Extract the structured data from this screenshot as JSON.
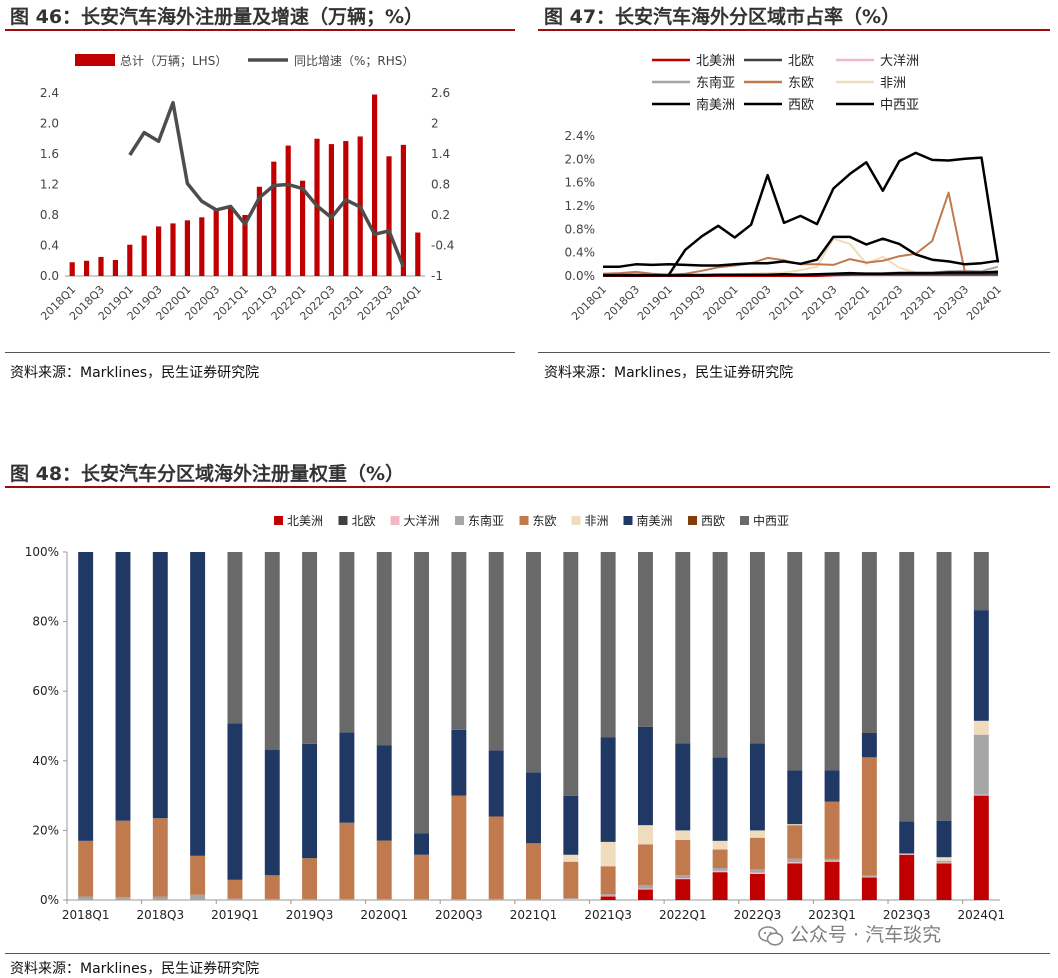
{
  "fig46": {
    "title": "图 46：长安汽车海外注册量及增速（万辆；%）",
    "source": "资料来源：Marklines，民生证券研究院",
    "legend_bar": "总计（万辆；LHS）",
    "legend_line": "同比增速（%；RHS）"
  },
  "fig47": {
    "title": "图 47：长安汽车海外分区域市占率（%）",
    "source": "资料来源：Marklines，民生证券研究院"
  },
  "fig48": {
    "title": "图 48：长安汽车分区域海外注册量权重（%）",
    "source": "资料来源：Marklines，民生证券研究院"
  },
  "watermark": "公众号 · 汽车琰究",
  "chart_data": [
    {
      "id": "fig46",
      "type": "bar",
      "x": [
        "2018Q1",
        "2018Q2",
        "2018Q3",
        "2018Q4",
        "2019Q1",
        "2019Q2",
        "2019Q3",
        "2019Q4",
        "2020Q1",
        "2020Q2",
        "2020Q3",
        "2020Q4",
        "2021Q1",
        "2021Q2",
        "2021Q3",
        "2021Q4",
        "2022Q1",
        "2022Q2",
        "2022Q3",
        "2022Q4",
        "2023Q1",
        "2023Q2",
        "2023Q3",
        "2023Q4",
        "2024Q1"
      ],
      "xticks": [
        "2018Q1",
        "2018Q3",
        "2019Q1",
        "2019Q3",
        "2020Q1",
        "2020Q3",
        "2021Q1",
        "2021Q3",
        "2022Q1",
        "2022Q3",
        "2023Q1",
        "2023Q3",
        "2024Q1"
      ],
      "series": [
        {
          "name": "总计（万辆；LHS）",
          "type": "bar",
          "axis": "left",
          "color": "#c00000",
          "values": [
            0.18,
            0.2,
            0.25,
            0.21,
            0.41,
            0.53,
            0.65,
            0.69,
            0.73,
            0.77,
            0.87,
            0.89,
            0.8,
            1.17,
            1.5,
            1.71,
            1.25,
            1.8,
            1.73,
            1.77,
            1.83,
            2.38,
            1.57,
            1.72,
            0.57
          ]
        },
        {
          "name": "同比增速（%；RHS）",
          "type": "line",
          "axis": "right",
          "color": "#4d4d4d",
          "values": [
            null,
            null,
            null,
            null,
            1.38,
            1.82,
            1.65,
            2.41,
            0.82,
            0.47,
            0.3,
            0.37,
            0.02,
            0.54,
            0.78,
            0.8,
            0.72,
            0.38,
            0.15,
            0.5,
            0.36,
            -0.18,
            -0.11,
            -0.82,
            null
          ]
        }
      ],
      "ylim_left": [
        0,
        2.4
      ],
      "yticks_left": [
        "0.0",
        "0.4",
        "0.8",
        "1.2",
        "1.6",
        "2.0",
        "2.4"
      ],
      "ylim_right": [
        -1,
        2.6
      ],
      "yticks_right": [
        "-1",
        "-0.4",
        "0.2",
        "0.8",
        "1.4",
        "2",
        "2.6"
      ]
    },
    {
      "id": "fig47",
      "type": "line",
      "x": [
        "2018Q1",
        "2018Q2",
        "2018Q3",
        "2018Q4",
        "2019Q1",
        "2019Q2",
        "2019Q3",
        "2019Q4",
        "2020Q1",
        "2020Q2",
        "2020Q3",
        "2020Q4",
        "2021Q1",
        "2021Q2",
        "2021Q3",
        "2021Q4",
        "2022Q1",
        "2022Q2",
        "2022Q3",
        "2022Q4",
        "2023Q1",
        "2023Q2",
        "2023Q3",
        "2023Q4",
        "2024Q1"
      ],
      "xticks": [
        "2018Q1",
        "2018Q3",
        "2019Q1",
        "2019Q3",
        "2020Q1",
        "2020Q3",
        "2021Q1",
        "2021Q3",
        "2022Q1",
        "2022Q3",
        "2023Q1",
        "2023Q3",
        "2024Q1"
      ],
      "ylim": [
        0,
        2.4
      ],
      "yticks": [
        "0.0%",
        "0.4%",
        "0.8%",
        "1.2%",
        "1.6%",
        "2.0%",
        "2.4%"
      ],
      "series": [
        {
          "name": "北美洲",
          "color": "#c00000",
          "width": 2,
          "values": [
            0,
            0,
            0,
            0,
            0,
            0,
            0,
            0,
            0,
            0,
            0,
            0,
            0,
            0,
            0.01,
            0.02,
            0.03,
            0.03,
            0.03,
            0.03,
            0.04,
            0.04,
            0.04,
            0.04,
            0.05
          ]
        },
        {
          "name": "北欧",
          "color": "#404040",
          "width": 2,
          "values": [
            0.02,
            0.02,
            0.02,
            0.02,
            0.02,
            0.02,
            0.02,
            0.02,
            0.02,
            0.02,
            0.02,
            0.02,
            0.02,
            0.02,
            0.02,
            0.02,
            0.02,
            0.02,
            0.02,
            0.02,
            0.02,
            0.02,
            0.02,
            0.02,
            0.02
          ]
        },
        {
          "name": "大洋洲",
          "color": "#f2b8c6",
          "width": 2,
          "values": [
            0,
            0,
            0,
            0,
            0,
            0,
            0,
            0,
            0,
            0,
            0,
            0,
            0,
            0,
            0.01,
            0.01,
            0.01,
            0.01,
            0.01,
            0.01,
            0.01,
            0.01,
            0.01,
            0.01,
            0.01
          ]
        },
        {
          "name": "东南亚",
          "color": "#a6a6a6",
          "width": 2,
          "values": [
            0.02,
            0.03,
            0.03,
            0.02,
            0.01,
            0.02,
            0.02,
            0.02,
            0.02,
            0.02,
            0.02,
            0.02,
            0.02,
            0.03,
            0.04,
            0.04,
            0.05,
            0.05,
            0.06,
            0.06,
            0.06,
            0.08,
            0.09,
            0.08,
            0.16
          ]
        },
        {
          "name": "东欧",
          "color": "#c07a4e",
          "width": 2,
          "values": [
            0.04,
            0.05,
            0.07,
            0.04,
            0.02,
            0.04,
            0.09,
            0.15,
            0.18,
            0.22,
            0.31,
            0.27,
            0.2,
            0.2,
            0.19,
            0.29,
            0.23,
            0.26,
            0.34,
            0.38,
            0.6,
            1.43,
            0.05,
            0.05,
            0.06
          ]
        },
        {
          "name": "非洲",
          "color": "#efdcbd",
          "width": 2,
          "values": [
            0.01,
            0.01,
            0.02,
            0.01,
            0.01,
            0.01,
            0.02,
            0.02,
            0.03,
            0.04,
            0.05,
            0.06,
            0.1,
            0.16,
            0.64,
            0.55,
            0.21,
            0.33,
            0.14,
            0.06,
            0.05,
            0.04,
            0.02,
            0.05,
            0.1
          ]
        },
        {
          "name": "南美洲",
          "color": "#000000",
          "width": 2.5,
          "values": [
            0.16,
            0.16,
            0.2,
            0.19,
            0.2,
            0.19,
            0.18,
            0.18,
            0.2,
            0.22,
            0.22,
            0.25,
            0.21,
            0.28,
            0.67,
            0.67,
            0.54,
            0.64,
            0.55,
            0.37,
            0.28,
            0.25,
            0.2,
            0.22,
            0.26
          ]
        },
        {
          "name": "西欧",
          "color": "#000000",
          "width": 2.5,
          "values": [
            0.01,
            0.01,
            0.01,
            0.01,
            0.01,
            0.01,
            0.01,
            0.02,
            0.02,
            0.02,
            0.02,
            0.03,
            0.02,
            0.03,
            0.04,
            0.05,
            0.04,
            0.04,
            0.05,
            0.05,
            0.05,
            0.06,
            0.06,
            0.06,
            0.07
          ]
        },
        {
          "name": "中西亚",
          "color": "#000000",
          "width": 2.5,
          "values": [
            null,
            null,
            null,
            null,
            0.02,
            0.45,
            0.68,
            0.86,
            0.66,
            0.88,
            1.73,
            0.91,
            1.03,
            0.89,
            1.5,
            1.75,
            1.95,
            1.46,
            1.97,
            2.11,
            1.99,
            1.98,
            2.01,
            2.03,
            0.23
          ]
        }
      ]
    },
    {
      "id": "fig48",
      "type": "bar",
      "stacked": true,
      "x": [
        "2018Q1",
        "2018Q2",
        "2018Q3",
        "2018Q4",
        "2019Q1",
        "2019Q2",
        "2019Q3",
        "2019Q4",
        "2020Q1",
        "2020Q2",
        "2020Q3",
        "2020Q4",
        "2021Q1",
        "2021Q2",
        "2021Q3",
        "2021Q4",
        "2022Q1",
        "2022Q2",
        "2022Q3",
        "2022Q4",
        "2023Q1",
        "2023Q2",
        "2023Q3",
        "2023Q4",
        "2024Q1"
      ],
      "xticks": [
        "2018Q1",
        "2018Q3",
        "2019Q1",
        "2019Q3",
        "2020Q1",
        "2020Q3",
        "2021Q1",
        "2021Q3",
        "2022Q1",
        "2022Q3",
        "2023Q1",
        "2023Q3",
        "2024Q1"
      ],
      "ylim": [
        0,
        100
      ],
      "yticks": [
        "0%",
        "20%",
        "40%",
        "60%",
        "80%",
        "100%"
      ],
      "series": [
        {
          "name": "北美洲",
          "color": "#c00000",
          "values": [
            0,
            0,
            0,
            0,
            0,
            0,
            0,
            0,
            0,
            0,
            0,
            0,
            0,
            0,
            1,
            3,
            6,
            8,
            7.5,
            10.5,
            11,
            6.5,
            13,
            10.5,
            30
          ]
        },
        {
          "name": "北欧",
          "color": "#404040",
          "values": [
            0,
            0,
            0,
            0,
            0,
            0,
            0,
            0,
            0,
            0,
            0,
            0,
            0,
            0,
            0,
            0,
            0,
            0,
            0,
            0,
            0,
            0,
            0,
            0,
            0
          ]
        },
        {
          "name": "大洋洲",
          "color": "#f2b8c6",
          "values": [
            0,
            0,
            0,
            0,
            0,
            0,
            0,
            0,
            0,
            0,
            0,
            0,
            0,
            0.2,
            0.2,
            0.3,
            0.3,
            0.4,
            0.4,
            0.4,
            0.3,
            0.2,
            0.2,
            0.3,
            0.3
          ]
        },
        {
          "name": "东南亚",
          "color": "#a6a6a6",
          "values": [
            1,
            0.8,
            1,
            1.5,
            0.4,
            0.3,
            0.3,
            0.3,
            0.3,
            0.3,
            0.2,
            0.3,
            0.3,
            0.3,
            0.5,
            1,
            0.8,
            0.8,
            1,
            1,
            0.5,
            0.3,
            0.2,
            0.5,
            17.2
          ]
        },
        {
          "name": "东欧",
          "color": "#c07a4e",
          "values": [
            16,
            22,
            22.5,
            11.2,
            5.4,
            6.8,
            11.7,
            21.9,
            16.8,
            12.7,
            29.8,
            23.7,
            16,
            10.5,
            8,
            11.7,
            10.2,
            5.3,
            9,
            9.6,
            16.5,
            34,
            0,
            0,
            0
          ]
        },
        {
          "name": "非洲",
          "color": "#efdcbd",
          "values": [
            0,
            0,
            0,
            0,
            0,
            0,
            0,
            0,
            0,
            0,
            0,
            0,
            0,
            2,
            7,
            5.5,
            2.7,
            2.5,
            2.1,
            0.3,
            0,
            0,
            0,
            1,
            4
          ]
        },
        {
          "name": "南美洲",
          "color": "#203864",
          "values": [
            83,
            77.2,
            76.5,
            87.3,
            45,
            36,
            32.9,
            26,
            27.4,
            6.2,
            18.9,
            19,
            20.4,
            16.9,
            30,
            28.3,
            25,
            24,
            25,
            15.4,
            9,
            7,
            9.2,
            10.5,
            31.8
          ]
        },
        {
          "name": "西欧",
          "color": "#843c0c",
          "values": [
            0,
            0,
            0,
            0,
            0,
            0,
            0,
            0,
            0,
            0,
            0,
            0,
            0,
            0,
            0,
            0,
            0,
            0,
            0,
            0,
            0,
            0,
            0,
            0,
            0
          ]
        },
        {
          "name": "中西亚",
          "color": "#696969",
          "values": [
            0,
            0,
            0,
            0,
            49.2,
            56.9,
            55.1,
            51.8,
            55.5,
            80.8,
            51.1,
            57,
            63.3,
            70.1,
            53.3,
            50.2,
            55,
            59,
            55,
            62.8,
            62.7,
            52,
            77.4,
            77.2,
            16.7
          ]
        }
      ]
    }
  ]
}
